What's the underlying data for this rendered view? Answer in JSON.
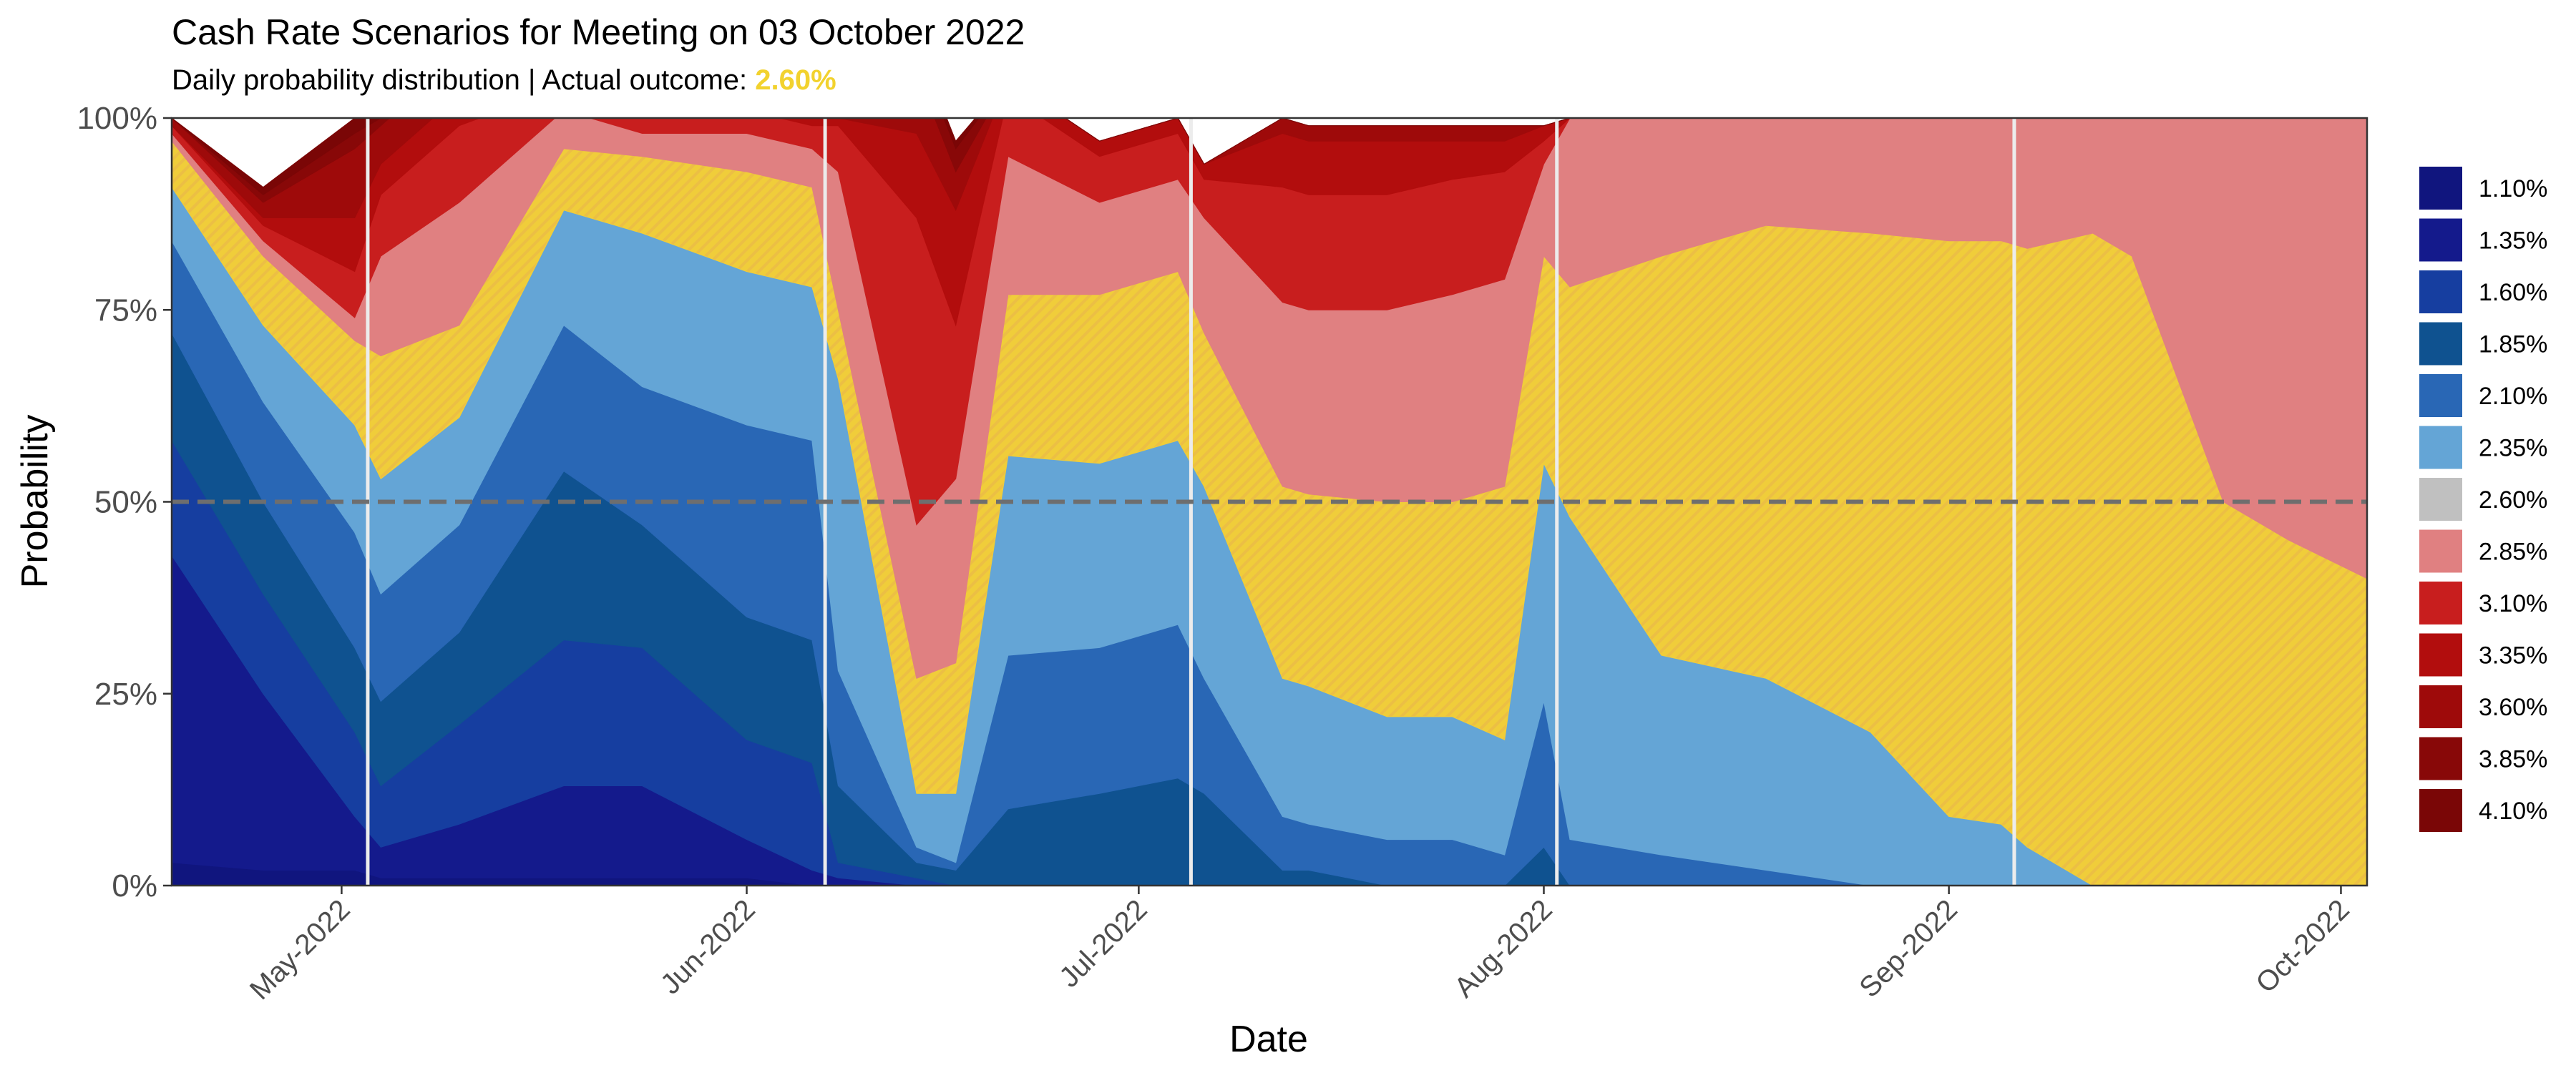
{
  "chart_data": {
    "type": "area",
    "stacked": true,
    "title": "Cash Rate Scenarios for Meeting on 03 October 2022",
    "subtitle_prefix": "Daily probability distribution | Actual outcome: ",
    "subtitle_outcome": "2.60%",
    "xlabel": "Date",
    "ylabel": "Probability",
    "x_range": [
      "2022-04-18",
      "2022-10-03"
    ],
    "ylim": [
      0,
      1
    ],
    "x_ticks": [
      {
        "date": "2022-05-01",
        "label": "May-2022"
      },
      {
        "date": "2022-06-01",
        "label": "Jun-2022"
      },
      {
        "date": "2022-07-01",
        "label": "Jul-2022"
      },
      {
        "date": "2022-08-01",
        "label": "Aug-2022"
      },
      {
        "date": "2022-09-01",
        "label": "Sep-2022"
      },
      {
        "date": "2022-10-01",
        "label": "Oct-2022"
      }
    ],
    "y_ticks": [
      {
        "value": 0,
        "label": "0%"
      },
      {
        "value": 0.25,
        "label": "25%"
      },
      {
        "value": 0.5,
        "label": "50%"
      },
      {
        "value": 0.75,
        "label": "75%"
      },
      {
        "value": 1,
        "label": "100%"
      }
    ],
    "reference_line": {
      "value": 0.5,
      "style": "dashed"
    },
    "meeting_lines": [
      "2022-05-03",
      "2022-06-07",
      "2022-07-05",
      "2022-08-02",
      "2022-09-06"
    ],
    "outcome_series": "2.60%",
    "legend_position": "right",
    "x": [
      "2022-04-18",
      "2022-04-25",
      "2022-05-02",
      "2022-05-04",
      "2022-05-10",
      "2022-05-18",
      "2022-05-24",
      "2022-06-01",
      "2022-06-06",
      "2022-06-08",
      "2022-06-14",
      "2022-06-17",
      "2022-06-21",
      "2022-06-28",
      "2022-07-04",
      "2022-07-06",
      "2022-07-12",
      "2022-07-14",
      "2022-07-20",
      "2022-07-25",
      "2022-07-29",
      "2022-08-01",
      "2022-08-03",
      "2022-08-10",
      "2022-08-18",
      "2022-08-26",
      "2022-09-01",
      "2022-09-05",
      "2022-09-07",
      "2022-09-12",
      "2022-09-15",
      "2022-09-22",
      "2022-09-27",
      "2022-10-03"
    ],
    "series": [
      {
        "name": "1.10%",
        "color": "#10157e",
        "values": [
          0.03,
          0.02,
          0.02,
          0.01,
          0.01,
          0.01,
          0.01,
          0.01,
          0,
          0,
          0,
          0,
          0,
          0,
          0,
          0,
          0,
          0,
          0,
          0,
          0,
          0,
          0,
          0,
          0,
          0,
          0,
          0,
          0,
          0,
          0,
          0,
          0,
          0
        ]
      },
      {
        "name": "1.35%",
        "color": "#141a8c",
        "values": [
          0.4,
          0.23,
          0.07,
          0.04,
          0.07,
          0.12,
          0.12,
          0.05,
          0.02,
          0.01,
          0,
          0,
          0,
          0,
          0,
          0,
          0,
          0,
          0,
          0,
          0,
          0,
          0,
          0,
          0,
          0,
          0,
          0,
          0,
          0,
          0,
          0,
          0,
          0
        ]
      },
      {
        "name": "1.60%",
        "color": "#163ea0",
        "values": [
          0.15,
          0.13,
          0.11,
          0.08,
          0.13,
          0.19,
          0.18,
          0.13,
          0.14,
          0.02,
          0.01,
          0,
          0,
          0,
          0,
          0,
          0,
          0,
          0,
          0,
          0,
          0,
          0,
          0,
          0,
          0,
          0,
          0,
          0,
          0,
          0,
          0,
          0,
          0
        ]
      },
      {
        "name": "1.85%",
        "color": "#0f5290",
        "values": [
          0.14,
          0.12,
          0.11,
          0.11,
          0.12,
          0.22,
          0.16,
          0.16,
          0.16,
          0.1,
          0.02,
          0.02,
          0.1,
          0.12,
          0.14,
          0.12,
          0.02,
          0.02,
          0,
          0,
          0,
          0.05,
          0,
          0,
          0,
          0,
          0,
          0,
          0,
          0,
          0,
          0,
          0,
          0
        ]
      },
      {
        "name": "2.10%",
        "color": "#2967b5",
        "values": [
          0.12,
          0.13,
          0.15,
          0.14,
          0.14,
          0.19,
          0.18,
          0.25,
          0.26,
          0.15,
          0.02,
          0.01,
          0.2,
          0.19,
          0.2,
          0.15,
          0.07,
          0.06,
          0.06,
          0.06,
          0.04,
          0.19,
          0.06,
          0.04,
          0.02,
          0,
          0,
          0,
          0,
          0,
          0,
          0,
          0,
          0
        ]
      },
      {
        "name": "2.35%",
        "color": "#64a5d6",
        "values": [
          0.07,
          0.1,
          0.14,
          0.15,
          0.14,
          0.15,
          0.2,
          0.2,
          0.2,
          0.38,
          0.07,
          0.09,
          0.26,
          0.24,
          0.24,
          0.25,
          0.18,
          0.18,
          0.16,
          0.16,
          0.15,
          0.31,
          0.42,
          0.26,
          0.25,
          0.2,
          0.09,
          0.08,
          0.05,
          0,
          0,
          0,
          0,
          0
        ]
      },
      {
        "name": "2.60%",
        "color": "#f0cd3a",
        "values": [
          0.06,
          0.09,
          0.11,
          0.16,
          0.12,
          0.08,
          0.1,
          0.13,
          0.13,
          0.09,
          0.15,
          0.17,
          0.21,
          0.22,
          0.22,
          0.2,
          0.25,
          0.25,
          0.28,
          0.28,
          0.33,
          0.27,
          0.3,
          0.52,
          0.59,
          0.65,
          0.75,
          0.76,
          0.78,
          0.85,
          0.82,
          0.5,
          0.45,
          0.4
        ]
      },
      {
        "name": "2.85%",
        "color": "#e08081",
        "values": [
          0.01,
          0.02,
          0.03,
          0.13,
          0.16,
          0.05,
          0.03,
          0.05,
          0.05,
          0.18,
          0.2,
          0.24,
          0.18,
          0.12,
          0.12,
          0.15,
          0.24,
          0.24,
          0.25,
          0.27,
          0.27,
          0.12,
          0.22,
          0.18,
          0.14,
          0.15,
          0.16,
          0.16,
          0.17,
          0.15,
          0.18,
          0.5,
          0.55,
          0.6
        ]
      },
      {
        "name": "3.10%",
        "color": "#c81e1e",
        "values": [
          0.01,
          0.02,
          0.06,
          0.08,
          0.1,
          0.03,
          0.03,
          0.03,
          0.03,
          0.06,
          0.4,
          0.2,
          0.08,
          0.06,
          0.06,
          0.05,
          0.15,
          0.15,
          0.15,
          0.15,
          0.14,
          0.03,
          0.0,
          0,
          0,
          0,
          0,
          0,
          0,
          0,
          0,
          0,
          0,
          0
        ]
      },
      {
        "name": "3.35%",
        "color": "#b20d0d",
        "values": [
          0,
          0.01,
          0.07,
          0.04,
          0.04,
          0.03,
          0.02,
          0.01,
          0.01,
          0.01,
          0.11,
          0.15,
          0.02,
          0.02,
          0.02,
          0.02,
          0.07,
          0.07,
          0.07,
          0.05,
          0.04,
          0.02,
          0,
          0,
          0,
          0,
          0,
          0,
          0,
          0,
          0,
          0,
          0,
          0
        ]
      },
      {
        "name": "3.60%",
        "color": "#9e0a0a",
        "values": [
          0.01,
          0.02,
          0.09,
          0.05,
          0.05,
          0.02,
          0.02,
          0,
          0,
          0,
          0.08,
          0.05,
          0,
          0,
          0,
          0,
          0.02,
          0.02,
          0.02,
          0.02,
          0.02,
          0,
          0,
          0,
          0,
          0,
          0,
          0,
          0,
          0,
          0,
          0,
          0,
          0
        ]
      },
      {
        "name": "3.85%",
        "color": "#880808",
        "values": [
          0,
          0.01,
          0.02,
          0.01,
          0.01,
          0,
          0,
          0,
          0,
          0,
          0.03,
          0.03,
          0,
          0,
          0,
          0,
          0,
          0,
          0,
          0,
          0,
          0,
          0,
          0,
          0,
          0,
          0,
          0,
          0,
          0,
          0,
          0,
          0,
          0
        ]
      },
      {
        "name": "4.10%",
        "color": "#7a0606",
        "values": [
          0,
          0.01,
          0.02,
          0.01,
          0.01,
          0,
          0,
          0,
          0,
          0,
          0.01,
          0.01,
          0,
          0,
          0,
          0,
          0,
          0,
          0,
          0,
          0,
          0,
          0,
          0,
          0,
          0,
          0,
          0,
          0,
          0,
          0,
          0,
          0,
          0
        ]
      }
    ]
  }
}
